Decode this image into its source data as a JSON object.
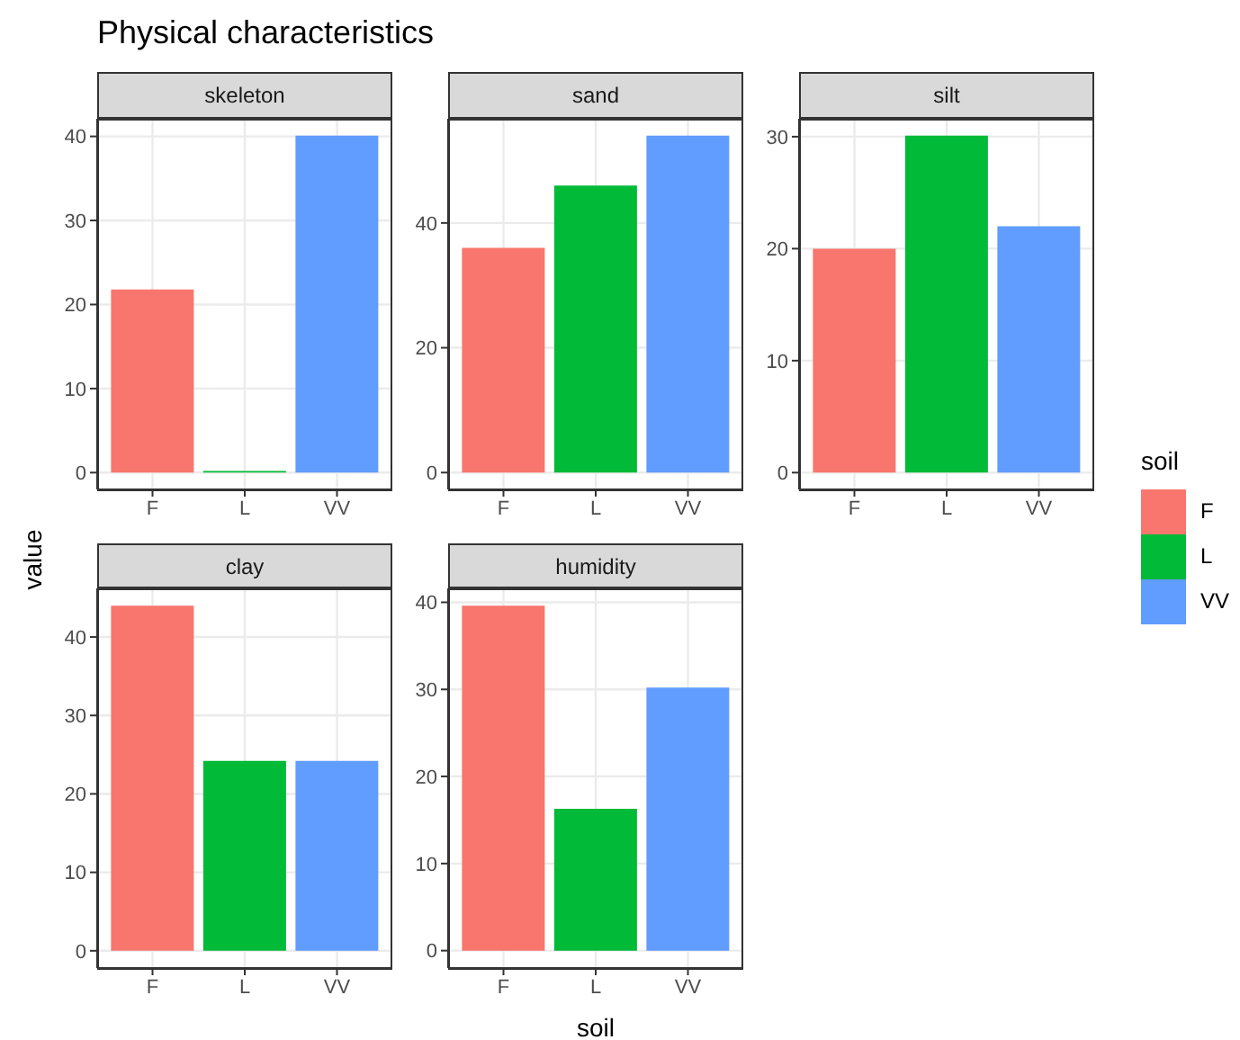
{
  "chart_data": [
    {
      "type": "bar",
      "stacked": true,
      "title": "Physical characteristics",
      "ylabel": "value",
      "subtitle": "skeleton",
      "categories": [
        "F",
        "L",
        "VV"
      ],
      "series": [
        {
          "color": "#f8766d",
          "values": [
            21.8,
            null,
            null
          ]
        },
        {
          "color": "#00ba38",
          "values": [
            null,
            0.2,
            null
          ]
        },
        {
          "color": "#619cff",
          "values": [
            null,
            null,
            40.1
          ]
        }
      ],
      "ylim": [
        -2,
        42.1
      ],
      "yticks": [
        0,
        10,
        20,
        30,
        40
      ],
      "grid": true
    },
    {
      "type": "bar",
      "stacked": true,
      "subtitle": "sand",
      "categories": [
        "F",
        "L",
        "VV"
      ],
      "series": [
        {
          "color": "#f8766d",
          "values": [
            36,
            null,
            null
          ]
        },
        {
          "color": "#00ba38",
          "values": [
            null,
            46,
            null
          ]
        },
        {
          "color": "#619cff",
          "values": [
            null,
            null,
            54
          ]
        }
      ],
      "ylim": [
        -2.7,
        56.7
      ],
      "yticks": [
        0,
        20,
        40
      ],
      "grid": true
    },
    {
      "type": "bar",
      "stacked": true,
      "subtitle": "silt",
      "categories": [
        "F",
        "L",
        "VV"
      ],
      "series": [
        {
          "name": "F",
          "color": "#f8766d",
          "values": [
            20,
            null,
            null
          ]
        },
        {
          "name": "L",
          "color": "#00ba38",
          "values": [
            null,
            30.1,
            null
          ]
        },
        {
          "name": "VV",
          "color": "#619cff",
          "values": [
            null,
            null,
            22
          ]
        }
      ],
      "ylim": [
        -1.5,
        31.6
      ],
      "yticks": [
        0,
        10,
        20,
        30
      ],
      "grid": true,
      "legend": "right",
      "legend_title": "soil"
    },
    {
      "type": "bar",
      "stacked": true,
      "subtitle": "clay",
      "categories": [
        "F",
        "L",
        "VV"
      ],
      "series": [
        {
          "color": "#f8766d",
          "values": [
            44,
            null,
            null
          ]
        },
        {
          "color": "#00ba38",
          "values": [
            null,
            24.2,
            null
          ]
        },
        {
          "color": "#619cff",
          "values": [
            null,
            null,
            24.2
          ]
        }
      ],
      "ylim": [
        -2.2,
        46.2
      ],
      "yticks": [
        0,
        10,
        20,
        30,
        40
      ],
      "grid": true
    },
    {
      "type": "bar",
      "stacked": true,
      "subtitle": "humidity",
      "xlabel": "soil",
      "categories": [
        "F",
        "L",
        "VV"
      ],
      "series": [
        {
          "color": "#f8766d",
          "values": [
            39.6,
            null,
            null
          ]
        },
        {
          "color": "#00ba38",
          "values": [
            null,
            16.3,
            null
          ]
        },
        {
          "color": "#619cff",
          "values": [
            null,
            null,
            30.2
          ]
        }
      ],
      "ylim": [
        -2,
        41.6
      ],
      "yticks": [
        0,
        10,
        20,
        30,
        40
      ],
      "grid": true
    }
  ]
}
